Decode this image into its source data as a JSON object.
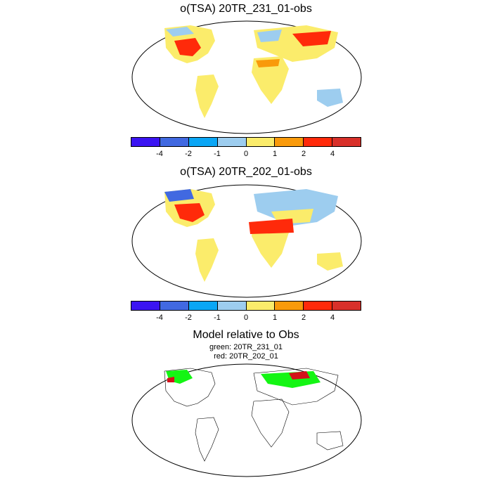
{
  "panels": [
    {
      "title": "o(TSA) 20TR_231_01-obs"
    },
    {
      "title": "o(TSA) 20TR_202_01-obs"
    }
  ],
  "colorbar": {
    "colors": [
      "#3b14f2",
      "#4169e1",
      "#0aa6f5",
      "#9dcdef",
      "#fbec6b",
      "#f99a0b",
      "#ff2a0a",
      "#d8302a"
    ],
    "tick_labels": [
      "-4",
      "-2",
      "-1",
      "0",
      "1",
      "2",
      "4"
    ]
  },
  "comparison": {
    "title": "Model relative to Obs",
    "legend_green": "green: 20TR_231_01",
    "legend_red": "red: 20TR_202_01",
    "colors": {
      "green": "#14f514",
      "red": "#d4101a"
    }
  }
}
